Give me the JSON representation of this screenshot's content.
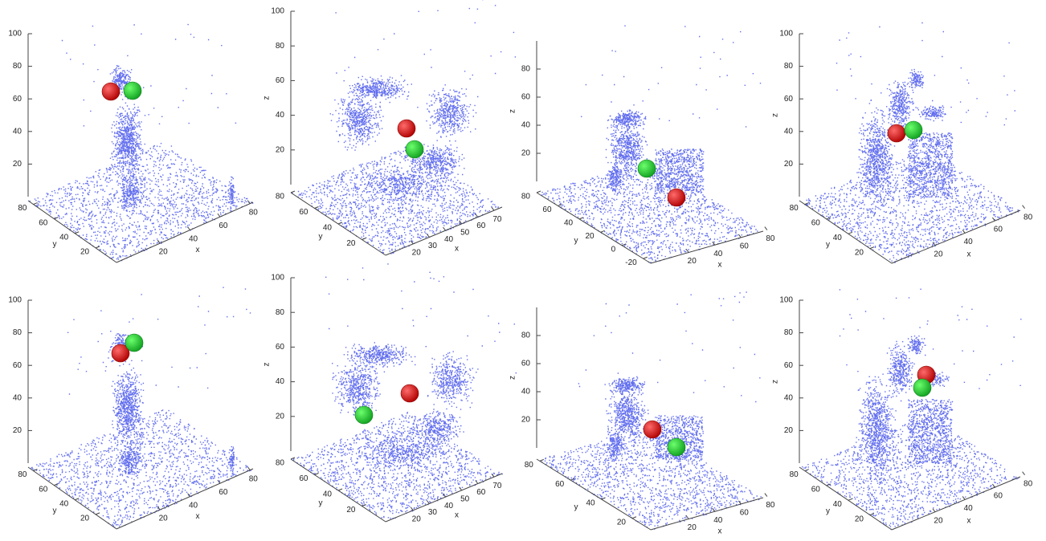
{
  "chart_data": [
    {
      "type": "scatter3d",
      "xlabel": "x",
      "ylabel": "y",
      "xlim": [
        -9,
        82
      ],
      "xticks": [
        20,
        40,
        60,
        80
      ],
      "ylim": [
        85,
        0
      ],
      "yticks": [
        20,
        40,
        60,
        80
      ],
      "zlim": [
        0,
        100
      ],
      "zticks": [
        20,
        40,
        60,
        80,
        100
      ]
    },
    {
      "type": "scatter3d",
      "xlabel": "x",
      "ylabel": "y",
      "zlabel": "z",
      "xlim": [
        3,
        75
      ],
      "xticks": [
        20,
        30,
        40,
        50,
        60,
        70
      ],
      "ylim": [
        80,
        0
      ],
      "yticks": [
        20,
        40,
        60,
        80
      ],
      "zlim": [
        0,
        100
      ],
      "zticks": [
        20,
        40,
        60,
        80,
        100
      ]
    },
    {
      "type": "scatter3d",
      "xlabel": "x",
      "ylabel": "y",
      "zlabel": "z",
      "xlim": [
        -9,
        77
      ],
      "xticks": [
        20,
        40,
        60,
        80
      ],
      "ylim": [
        80,
        -27
      ],
      "yticks": [
        -20,
        0,
        20,
        40,
        60,
        80
      ],
      "zlim": [
        0,
        100
      ],
      "zticks": [
        20,
        40,
        60,
        80
      ]
    },
    {
      "type": "scatter3d",
      "xlabel": "x",
      "ylabel": "y",
      "zlabel": "z",
      "xlim": [
        -9,
        77
      ],
      "xticks": [
        20,
        40,
        60,
        80
      ],
      "ylim": [
        85,
        0
      ],
      "yticks": [
        20,
        40,
        60,
        80
      ],
      "zlim": [
        0,
        100
      ],
      "zticks": [
        20,
        40,
        60,
        80,
        100
      ]
    },
    {
      "type": "scatter3d",
      "xlabel": "x",
      "ylabel": "y",
      "xlim": [
        -9,
        82
      ],
      "xticks": [
        20,
        40,
        60,
        80
      ],
      "ylim": [
        85,
        0
      ],
      "yticks": [
        20,
        40,
        60,
        80
      ],
      "zlim": [
        0,
        100
      ],
      "zticks": [
        20,
        40,
        60,
        80,
        100
      ]
    },
    {
      "type": "scatter3d",
      "xlabel": "x",
      "ylabel": "y",
      "zlabel": "z",
      "xlim": [
        3,
        75
      ],
      "xticks": [
        20,
        30,
        40,
        50,
        60,
        70
      ],
      "ylim": [
        80,
        0
      ],
      "yticks": [
        20,
        40,
        60,
        80
      ],
      "zlim": [
        0,
        100
      ],
      "zticks": [
        20,
        40,
        60,
        80,
        100
      ]
    },
    {
      "type": "scatter3d",
      "xlabel": "x",
      "ylabel": "y",
      "zlabel": "z",
      "xlim": [
        -9,
        77
      ],
      "xticks": [
        20,
        40,
        60,
        80
      ],
      "ylim": [
        82,
        8
      ],
      "yticks": [
        20,
        40,
        60,
        80
      ],
      "zlim": [
        0,
        100
      ],
      "zticks": [
        20,
        40,
        60,
        80
      ]
    },
    {
      "type": "scatter3d",
      "xlabel": "x",
      "ylabel": "y",
      "zlabel": "z",
      "xlim": [
        -9,
        77
      ],
      "xticks": [
        20,
        40,
        60,
        80
      ],
      "ylim": [
        85,
        0
      ],
      "yticks": [
        20,
        40,
        60,
        80
      ],
      "zlim": [
        0,
        100
      ],
      "zticks": [
        20,
        40,
        60,
        80,
        100
      ]
    }
  ]
}
